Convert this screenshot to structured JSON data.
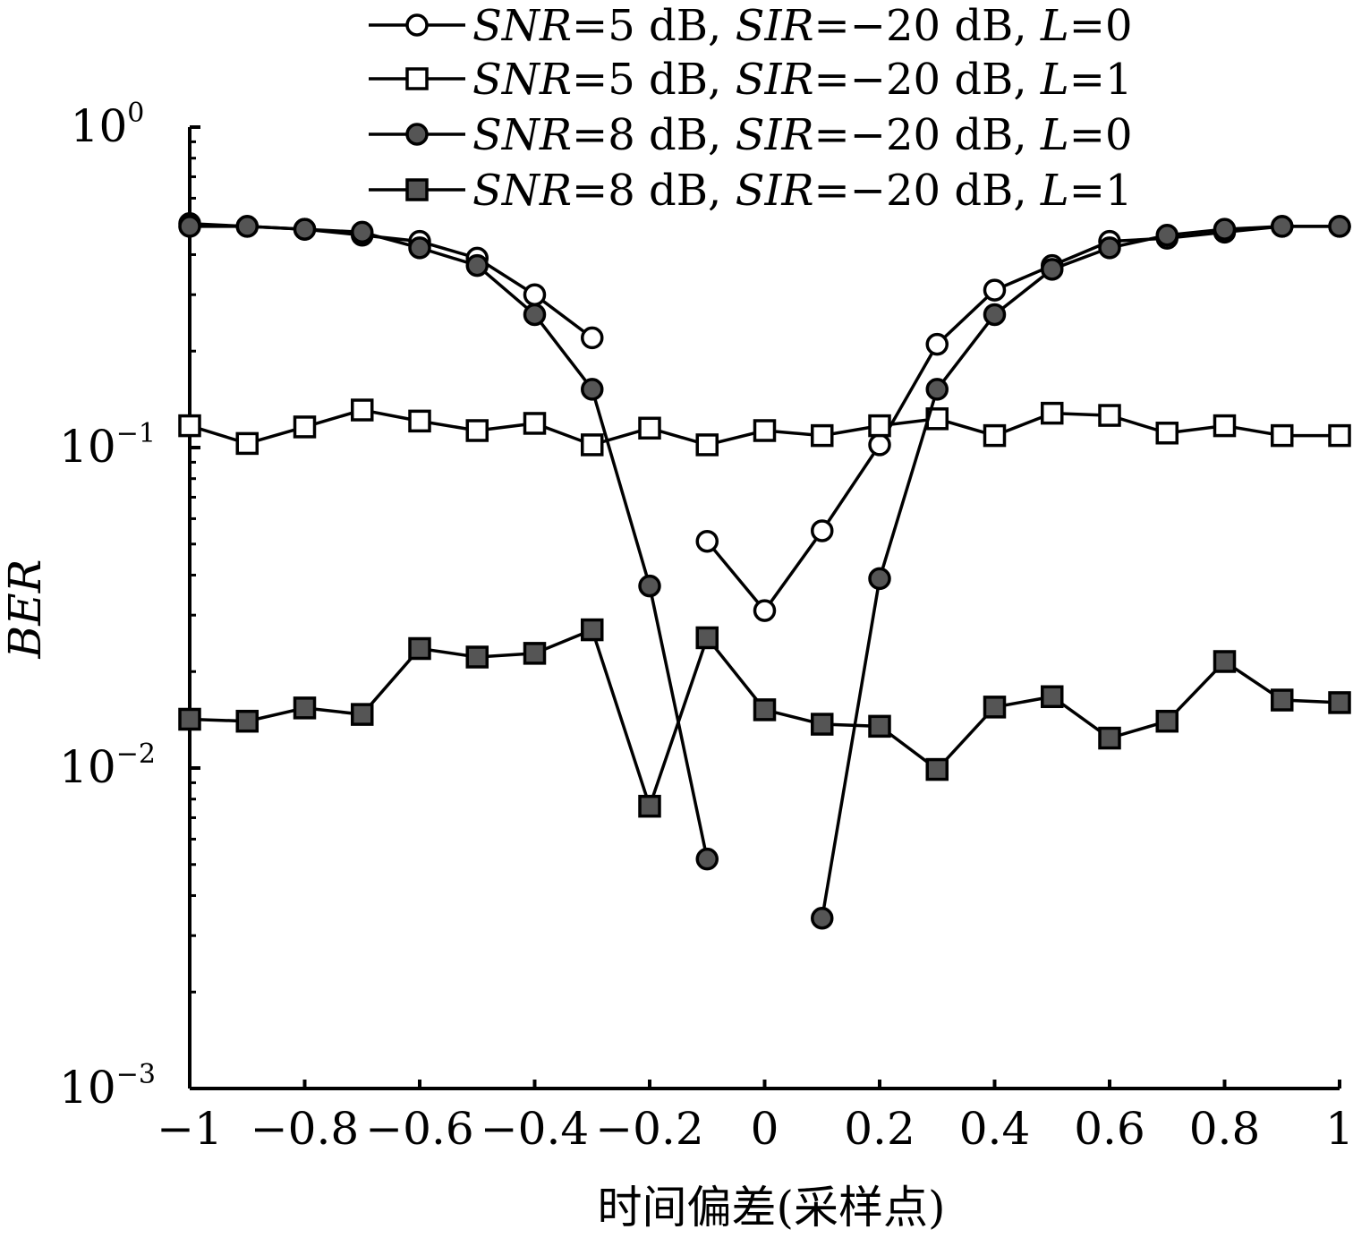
{
  "chart_data": {
    "type": "line",
    "xlabel": "时间偏差(采样点)",
    "ylabel": "BER",
    "xlim": [
      -1,
      1
    ],
    "ylim": [
      0.001,
      1
    ],
    "yscale": "log",
    "xticks": [
      -1,
      -0.8,
      -0.6,
      -0.4,
      -0.2,
      0,
      0.2,
      0.4,
      0.6,
      0.8,
      1
    ],
    "xtick_labels": [
      "−1",
      "−0.8",
      "−0.6",
      "−0.4",
      "−0.2",
      "0",
      "0.2",
      "0.4",
      "0.6",
      "0.8",
      "1"
    ],
    "yticks": [
      {
        "value": 1,
        "base": "10",
        "exp": "0"
      },
      {
        "value": 0.1,
        "base": "10",
        "exp": "−1"
      },
      {
        "value": 0.01,
        "base": "10",
        "exp": "−2"
      },
      {
        "value": 0.001,
        "base": "10",
        "exp": "−3"
      }
    ],
    "grid": false,
    "legend_position": "top",
    "x": [
      -1,
      -0.9,
      -0.8,
      -0.7,
      -0.6,
      -0.5,
      -0.4,
      -0.3,
      -0.2,
      -0.1,
      0,
      0.1,
      0.2,
      0.3,
      0.4,
      0.5,
      0.6,
      0.7,
      0.8,
      0.9,
      1
    ],
    "series": [
      {
        "legend": [
          {
            "text": "SNR",
            "italic": true
          },
          {
            "text": "=5 dB, ",
            "italic": false
          },
          {
            "text": "SIR",
            "italic": true
          },
          {
            "text": "=−20 dB, ",
            "italic": false
          },
          {
            "text": "L",
            "italic": true
          },
          {
            "text": "=0",
            "italic": false
          }
        ],
        "marker": "circle",
        "fill": "#ffffff",
        "values": [
          0.5,
          0.49,
          0.48,
          0.46,
          0.44,
          0.39,
          0.3,
          0.22,
          null,
          0.051,
          0.031,
          0.055,
          0.102,
          0.21,
          0.31,
          0.37,
          0.44,
          0.45,
          0.47,
          0.49,
          0.49
        ]
      },
      {
        "legend": [
          {
            "text": "SNR",
            "italic": true
          },
          {
            "text": "=5 dB, ",
            "italic": false
          },
          {
            "text": "SIR",
            "italic": true
          },
          {
            "text": "=−20 dB, ",
            "italic": false
          },
          {
            "text": "L",
            "italic": true
          },
          {
            "text": "=1",
            "italic": false
          }
        ],
        "marker": "square",
        "fill": "#ffffff",
        "values": [
          0.117,
          0.103,
          0.116,
          0.131,
          0.121,
          0.113,
          0.119,
          0.102,
          0.115,
          0.102,
          0.113,
          0.109,
          0.117,
          0.123,
          0.109,
          0.128,
          0.126,
          0.111,
          0.117,
          0.109,
          0.109
        ]
      },
      {
        "legend": [
          {
            "text": "SNR",
            "italic": true
          },
          {
            "text": "=8 dB, ",
            "italic": false
          },
          {
            "text": "SIR",
            "italic": true
          },
          {
            "text": "=−20 dB, ",
            "italic": false
          },
          {
            "text": "L",
            "italic": true
          },
          {
            "text": "=0",
            "italic": false
          }
        ],
        "marker": "circle",
        "fill": "#555555",
        "values": [
          0.49,
          0.49,
          0.48,
          0.47,
          0.42,
          0.37,
          0.26,
          0.152,
          0.037,
          0.0052,
          null,
          0.0034,
          0.039,
          0.152,
          0.26,
          0.36,
          0.42,
          0.46,
          0.48,
          0.49,
          0.49
        ]
      },
      {
        "legend": [
          {
            "text": "SNR",
            "italic": true
          },
          {
            "text": "=8 dB, ",
            "italic": false
          },
          {
            "text": "SIR",
            "italic": true
          },
          {
            "text": "=−20 dB, ",
            "italic": false
          },
          {
            "text": "L",
            "italic": true
          },
          {
            "text": "=1",
            "italic": false
          }
        ],
        "marker": "square",
        "fill": "#555555",
        "values": [
          0.0142,
          0.014,
          0.0154,
          0.0147,
          0.0236,
          0.0222,
          0.0228,
          0.027,
          0.0076,
          0.0255,
          0.0152,
          0.0137,
          0.0135,
          0.0099,
          0.0155,
          0.0167,
          0.0124,
          0.014,
          0.0215,
          0.0163,
          0.016
        ]
      }
    ]
  }
}
